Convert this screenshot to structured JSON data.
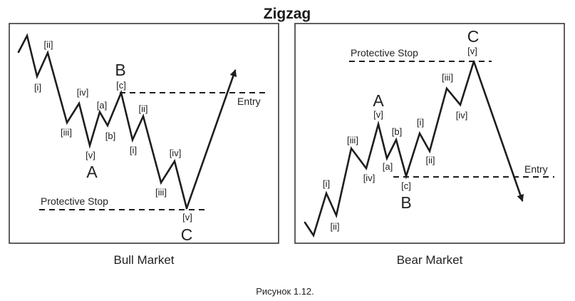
{
  "title": "Zigzag",
  "figure_caption": "Рисунок 1.12.",
  "colors": {
    "wave_letters": "#e03a3a",
    "lines": "#1e1e1e",
    "text": "#222222"
  },
  "bull": {
    "caption": "Bull Market",
    "entry": "Entry",
    "stop": "Protective Stop",
    "labels": {
      "i1": "[i]",
      "ii1": "[ii]",
      "iii1": "[iii]",
      "iv1": "[iv]",
      "v1": "[v]",
      "A": "A",
      "a": "[a]",
      "b": "[b]",
      "c": "[c]",
      "B": "B",
      "i2": "[i]",
      "ii2": "[ii]",
      "iii2": "[iii]",
      "iv2": "[iv]",
      "v2": "[v]",
      "C": "C"
    }
  },
  "bear": {
    "caption": "Bear Market",
    "entry": "Entry",
    "stop": "Protective Stop",
    "labels": {
      "i1": "[i]",
      "ii1": "[ii]",
      "iii1": "[iii]",
      "iv1": "[iv]",
      "v1": "[v]",
      "A": "A",
      "a": "[a]",
      "b": "[b]",
      "c": "[c]",
      "B": "B",
      "i2": "[i]",
      "ii2": "[ii]",
      "iii2": "[iii]",
      "iv2": "[iv]",
      "v2": "[v]",
      "C": "C"
    }
  }
}
